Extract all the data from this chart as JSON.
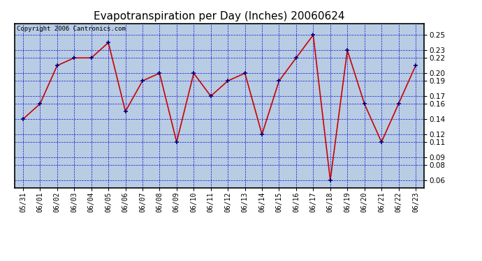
{
  "title": "Evapotranspiration per Day (Inches) 20060624",
  "copyright_text": "Copyright 2006 Cantronics.com",
  "dates": [
    "05/31",
    "06/01",
    "06/02",
    "06/03",
    "06/04",
    "06/05",
    "06/06",
    "06/07",
    "06/08",
    "06/09",
    "06/10",
    "06/11",
    "06/12",
    "06/13",
    "06/14",
    "06/15",
    "06/16",
    "06/17",
    "06/18",
    "06/19",
    "06/20",
    "06/21",
    "06/22",
    "06/23"
  ],
  "values": [
    0.14,
    0.16,
    0.21,
    0.22,
    0.22,
    0.24,
    0.15,
    0.19,
    0.2,
    0.11,
    0.2,
    0.17,
    0.19,
    0.2,
    0.12,
    0.19,
    0.22,
    0.25,
    0.06,
    0.23,
    0.16,
    0.11,
    0.16,
    0.21
  ],
  "ylim_min": 0.05,
  "ylim_max": 0.265,
  "yticks": [
    0.06,
    0.08,
    0.09,
    0.11,
    0.12,
    0.14,
    0.16,
    0.17,
    0.19,
    0.2,
    0.22,
    0.23,
    0.25
  ],
  "line_color": "#cc0000",
  "marker": "+",
  "marker_color": "#00008b",
  "bg_color": "#b8cce4",
  "grid_color": "#0000cc",
  "title_fontsize": 11,
  "copyright_fontsize": 6.5,
  "tick_fontsize": 7,
  "ytick_fontsize": 7.5
}
